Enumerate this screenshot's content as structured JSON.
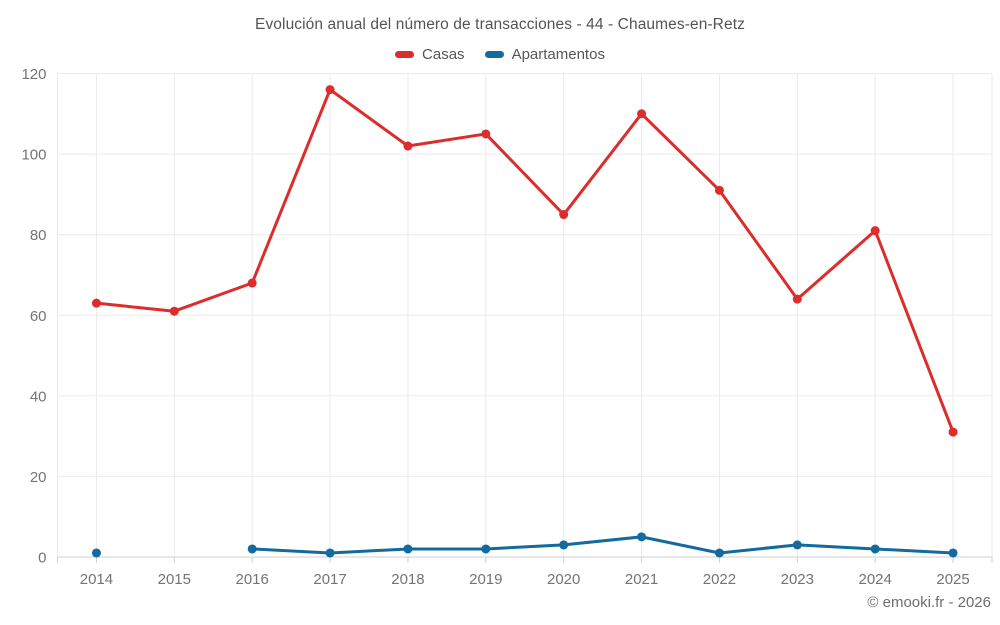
{
  "title": "Evolución anual del número de transacciones - 44 - Chaumes-en-Retz",
  "footer": "© emooki.fr - 2026",
  "colors": {
    "casas": "#dc2c2c",
    "apartamentos": "#136a9e",
    "gridline": "#ebebeb",
    "axis_line": "#cfcfcf",
    "tick_text": "#747474"
  },
  "chart_data": {
    "type": "line",
    "title": "Evolución anual del número de transacciones - 44 - Chaumes-en-Retz",
    "x": [
      "2014",
      "2015",
      "2016",
      "2017",
      "2018",
      "2019",
      "2020",
      "2021",
      "2022",
      "2023",
      "2024",
      "2025"
    ],
    "series": [
      {
        "name": "Casas",
        "color": "#dc2c2c",
        "values": [
          63,
          61,
          68,
          116,
          102,
          105,
          85,
          110,
          91,
          64,
          81,
          31
        ]
      },
      {
        "name": "Apartamentos",
        "color": "#136a9e",
        "values": [
          1,
          null,
          2,
          1,
          2,
          2,
          3,
          5,
          1,
          3,
          2,
          1
        ]
      }
    ],
    "xlabel": "",
    "ylabel": "",
    "ylim": [
      0,
      120
    ],
    "y_ticks": [
      0,
      20,
      40,
      60,
      80,
      100,
      120
    ],
    "grid": true,
    "legend_position": "top"
  }
}
